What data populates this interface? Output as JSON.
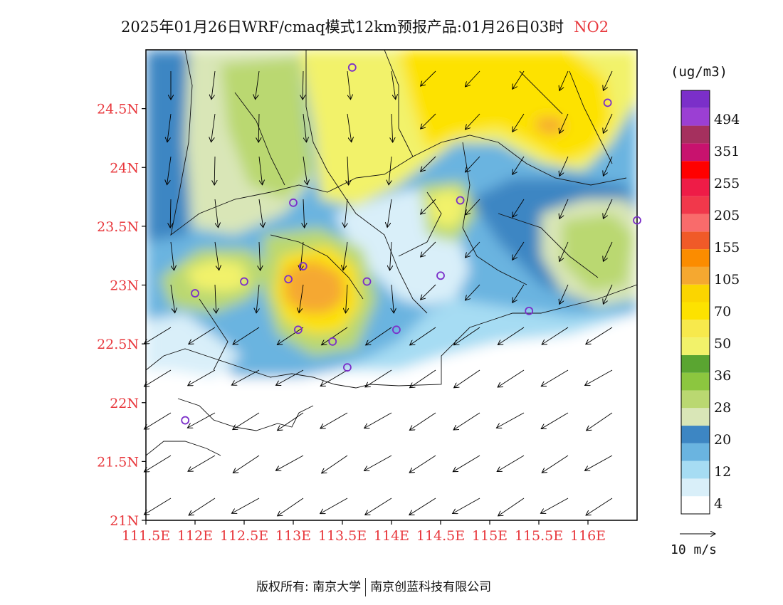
{
  "title": {
    "main": "2025年01月26日WRF/cmaq模式12km预报产品:01月26日03时",
    "pollutant": "NO2"
  },
  "axes": {
    "lat_ticks": [
      "24.5N",
      "24N",
      "23.5N",
      "23N",
      "22.5N",
      "22N",
      "21.5N",
      "21N"
    ],
    "lon_ticks": [
      "111.5E",
      "112E",
      "112.5E",
      "113E",
      "113.5E",
      "114E",
      "114.5E",
      "115E",
      "115.5E",
      "116E"
    ],
    "tick_color": "#e8383d"
  },
  "colorbar": {
    "unit": "(ug/m3)",
    "labels": [
      "494",
      "351",
      "255",
      "205",
      "155",
      "105",
      "70",
      "50",
      "36",
      "28",
      "20",
      "12",
      "4"
    ],
    "colors": [
      "#ffffff",
      "#d9eff9",
      "#a6dcf3",
      "#6ab4e0",
      "#3d86c3",
      "#d9e6b7",
      "#bad871",
      "#8cc63f",
      "#5aa531",
      "#f2f26a",
      "#f7e94c",
      "#fde200",
      "#fbd500",
      "#f5a830",
      "#fb8c00",
      "#f05a28",
      "#f96b6b",
      "#f1384b",
      "#ee1c47",
      "#ff0000",
      "#c8126e",
      "#a5305e",
      "#9b3fd3",
      "#7b2fc9"
    ]
  },
  "wind_legend": {
    "label": "10 m/s"
  },
  "stations": [
    {
      "lon": 113.6,
      "lat": 24.85
    },
    {
      "lon": 116.2,
      "lat": 24.55
    },
    {
      "lon": 113.0,
      "lat": 23.7
    },
    {
      "lon": 114.7,
      "lat": 23.72
    },
    {
      "lon": 116.5,
      "lat": 23.55
    },
    {
      "lon": 113.1,
      "lat": 23.16
    },
    {
      "lon": 112.95,
      "lat": 23.05
    },
    {
      "lon": 112.5,
      "lat": 23.03
    },
    {
      "lon": 112.0,
      "lat": 22.93
    },
    {
      "lon": 113.75,
      "lat": 23.03
    },
    {
      "lon": 114.5,
      "lat": 23.08
    },
    {
      "lon": 115.4,
      "lat": 22.78
    },
    {
      "lon": 113.05,
      "lat": 22.62
    },
    {
      "lon": 114.05,
      "lat": 22.62
    },
    {
      "lon": 113.4,
      "lat": 22.52
    },
    {
      "lon": 113.55,
      "lat": 22.3
    },
    {
      "lon": 111.9,
      "lat": 21.85
    }
  ],
  "copyright": {
    "left": "版权所有: 南京大学",
    "right": "南京创蓝科技有限公司"
  }
}
